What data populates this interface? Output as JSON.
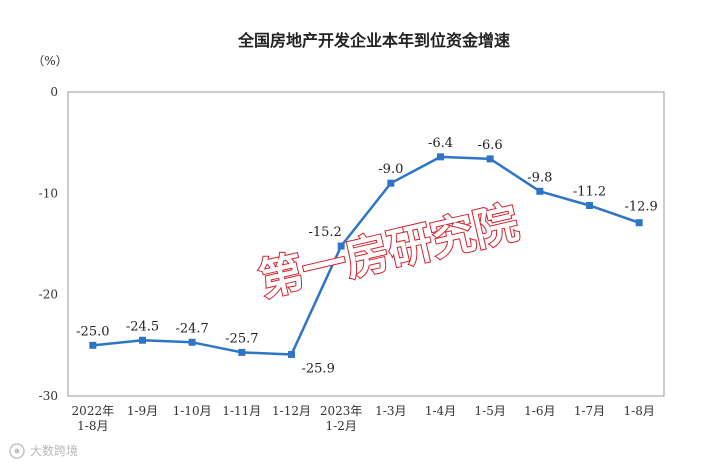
{
  "chart_data": {
    "type": "line",
    "title": "全国房地产开发企业本年到位资金增速",
    "unit_label": "（%）",
    "categories": [
      [
        "2022年",
        "1-8月"
      ],
      [
        "1-9月"
      ],
      [
        "1-10月"
      ],
      [
        "1-11月"
      ],
      [
        "1-12月"
      ],
      [
        "2023年",
        "1-2月"
      ],
      [
        "1-3月"
      ],
      [
        "1-4月"
      ],
      [
        "1-5月"
      ],
      [
        "1-6月"
      ],
      [
        "1-7月"
      ],
      [
        "1-8月"
      ]
    ],
    "series": [
      {
        "values": [
          -25.0,
          -24.5,
          -24.7,
          -25.7,
          -25.9,
          -15.2,
          -9.0,
          -6.4,
          -6.6,
          -9.8,
          -11.2,
          -12.9
        ],
        "labels": [
          "-25.0",
          "-24.5",
          "-24.7",
          "-25.7",
          "-25.9",
          "-15.2",
          "-9.0",
          "-6.4",
          "-6.6",
          "-9.8",
          "-11.2",
          "-12.9"
        ],
        "color": "#2e75c8"
      }
    ],
    "ylim": [
      -30,
      0
    ],
    "yticks": [
      0,
      -10,
      -20,
      -30
    ],
    "grid": false,
    "legend": "none"
  },
  "watermark": {
    "text": "第一房研究院",
    "color": "#d3202a"
  },
  "logo": {
    "text": "大数跨境",
    "icon": "watermark-logo-icon"
  }
}
